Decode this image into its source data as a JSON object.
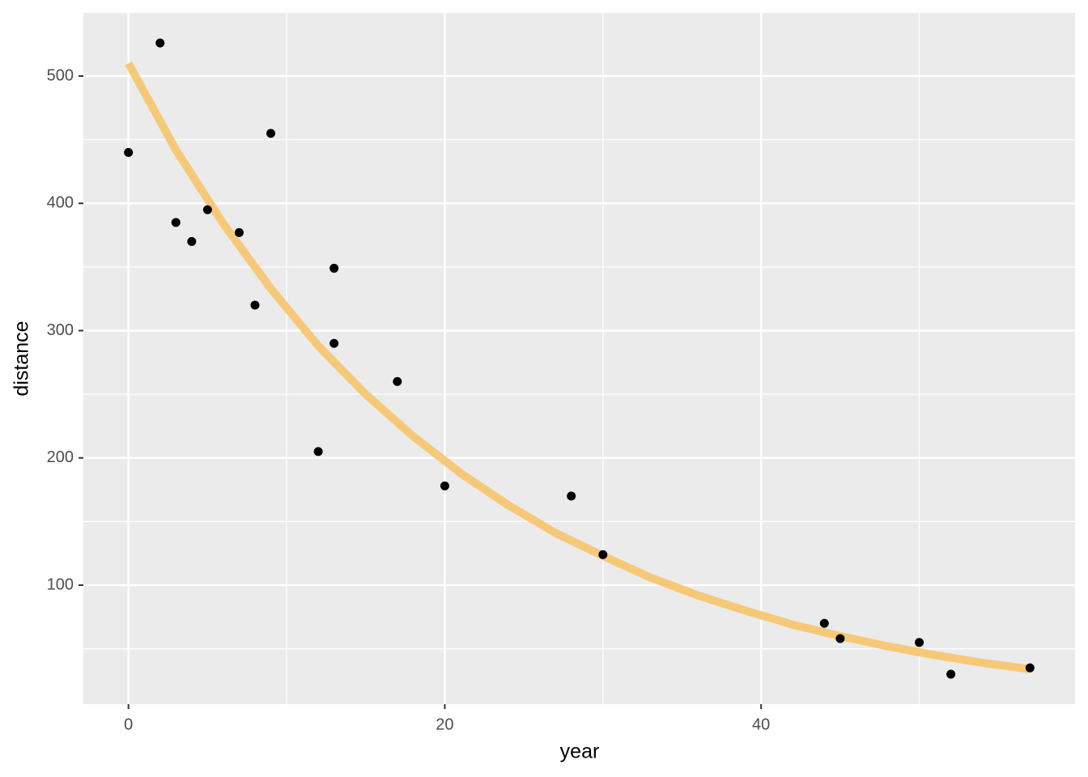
{
  "chart_data": {
    "type": "scatter",
    "x_label": "year",
    "y_label": "distance",
    "x": [
      0,
      2,
      3,
      4,
      5,
      7,
      8,
      9,
      12,
      13,
      13,
      17,
      20,
      28,
      30,
      44,
      45,
      50,
      52,
      57
    ],
    "values": [
      440,
      526,
      385,
      370,
      395,
      377,
      320,
      455,
      205,
      349,
      290,
      260,
      178,
      170,
      124,
      70,
      58,
      55,
      30,
      35
    ],
    "color": "#000000",
    "fit": {
      "x": [
        0,
        3,
        6,
        9,
        12,
        15,
        18,
        21,
        24,
        27,
        30,
        33,
        36,
        39,
        42,
        45,
        48,
        51,
        54,
        57
      ],
      "values": [
        510,
        442,
        384,
        333,
        288,
        250,
        217,
        188,
        163,
        141,
        123,
        106,
        92,
        80,
        69,
        60,
        52,
        45,
        39,
        34
      ],
      "color": "#f6c978"
    },
    "xlim": [
      -2.85,
      59.85
    ],
    "ylim": [
      6.5,
      549.6
    ],
    "xticks": [
      0,
      20,
      40
    ],
    "yticks": [
      100,
      200,
      300,
      400,
      500
    ],
    "xminor": [
      10,
      30,
      50
    ],
    "yminor": [
      50,
      150,
      250,
      350,
      450
    ],
    "grid": true
  }
}
